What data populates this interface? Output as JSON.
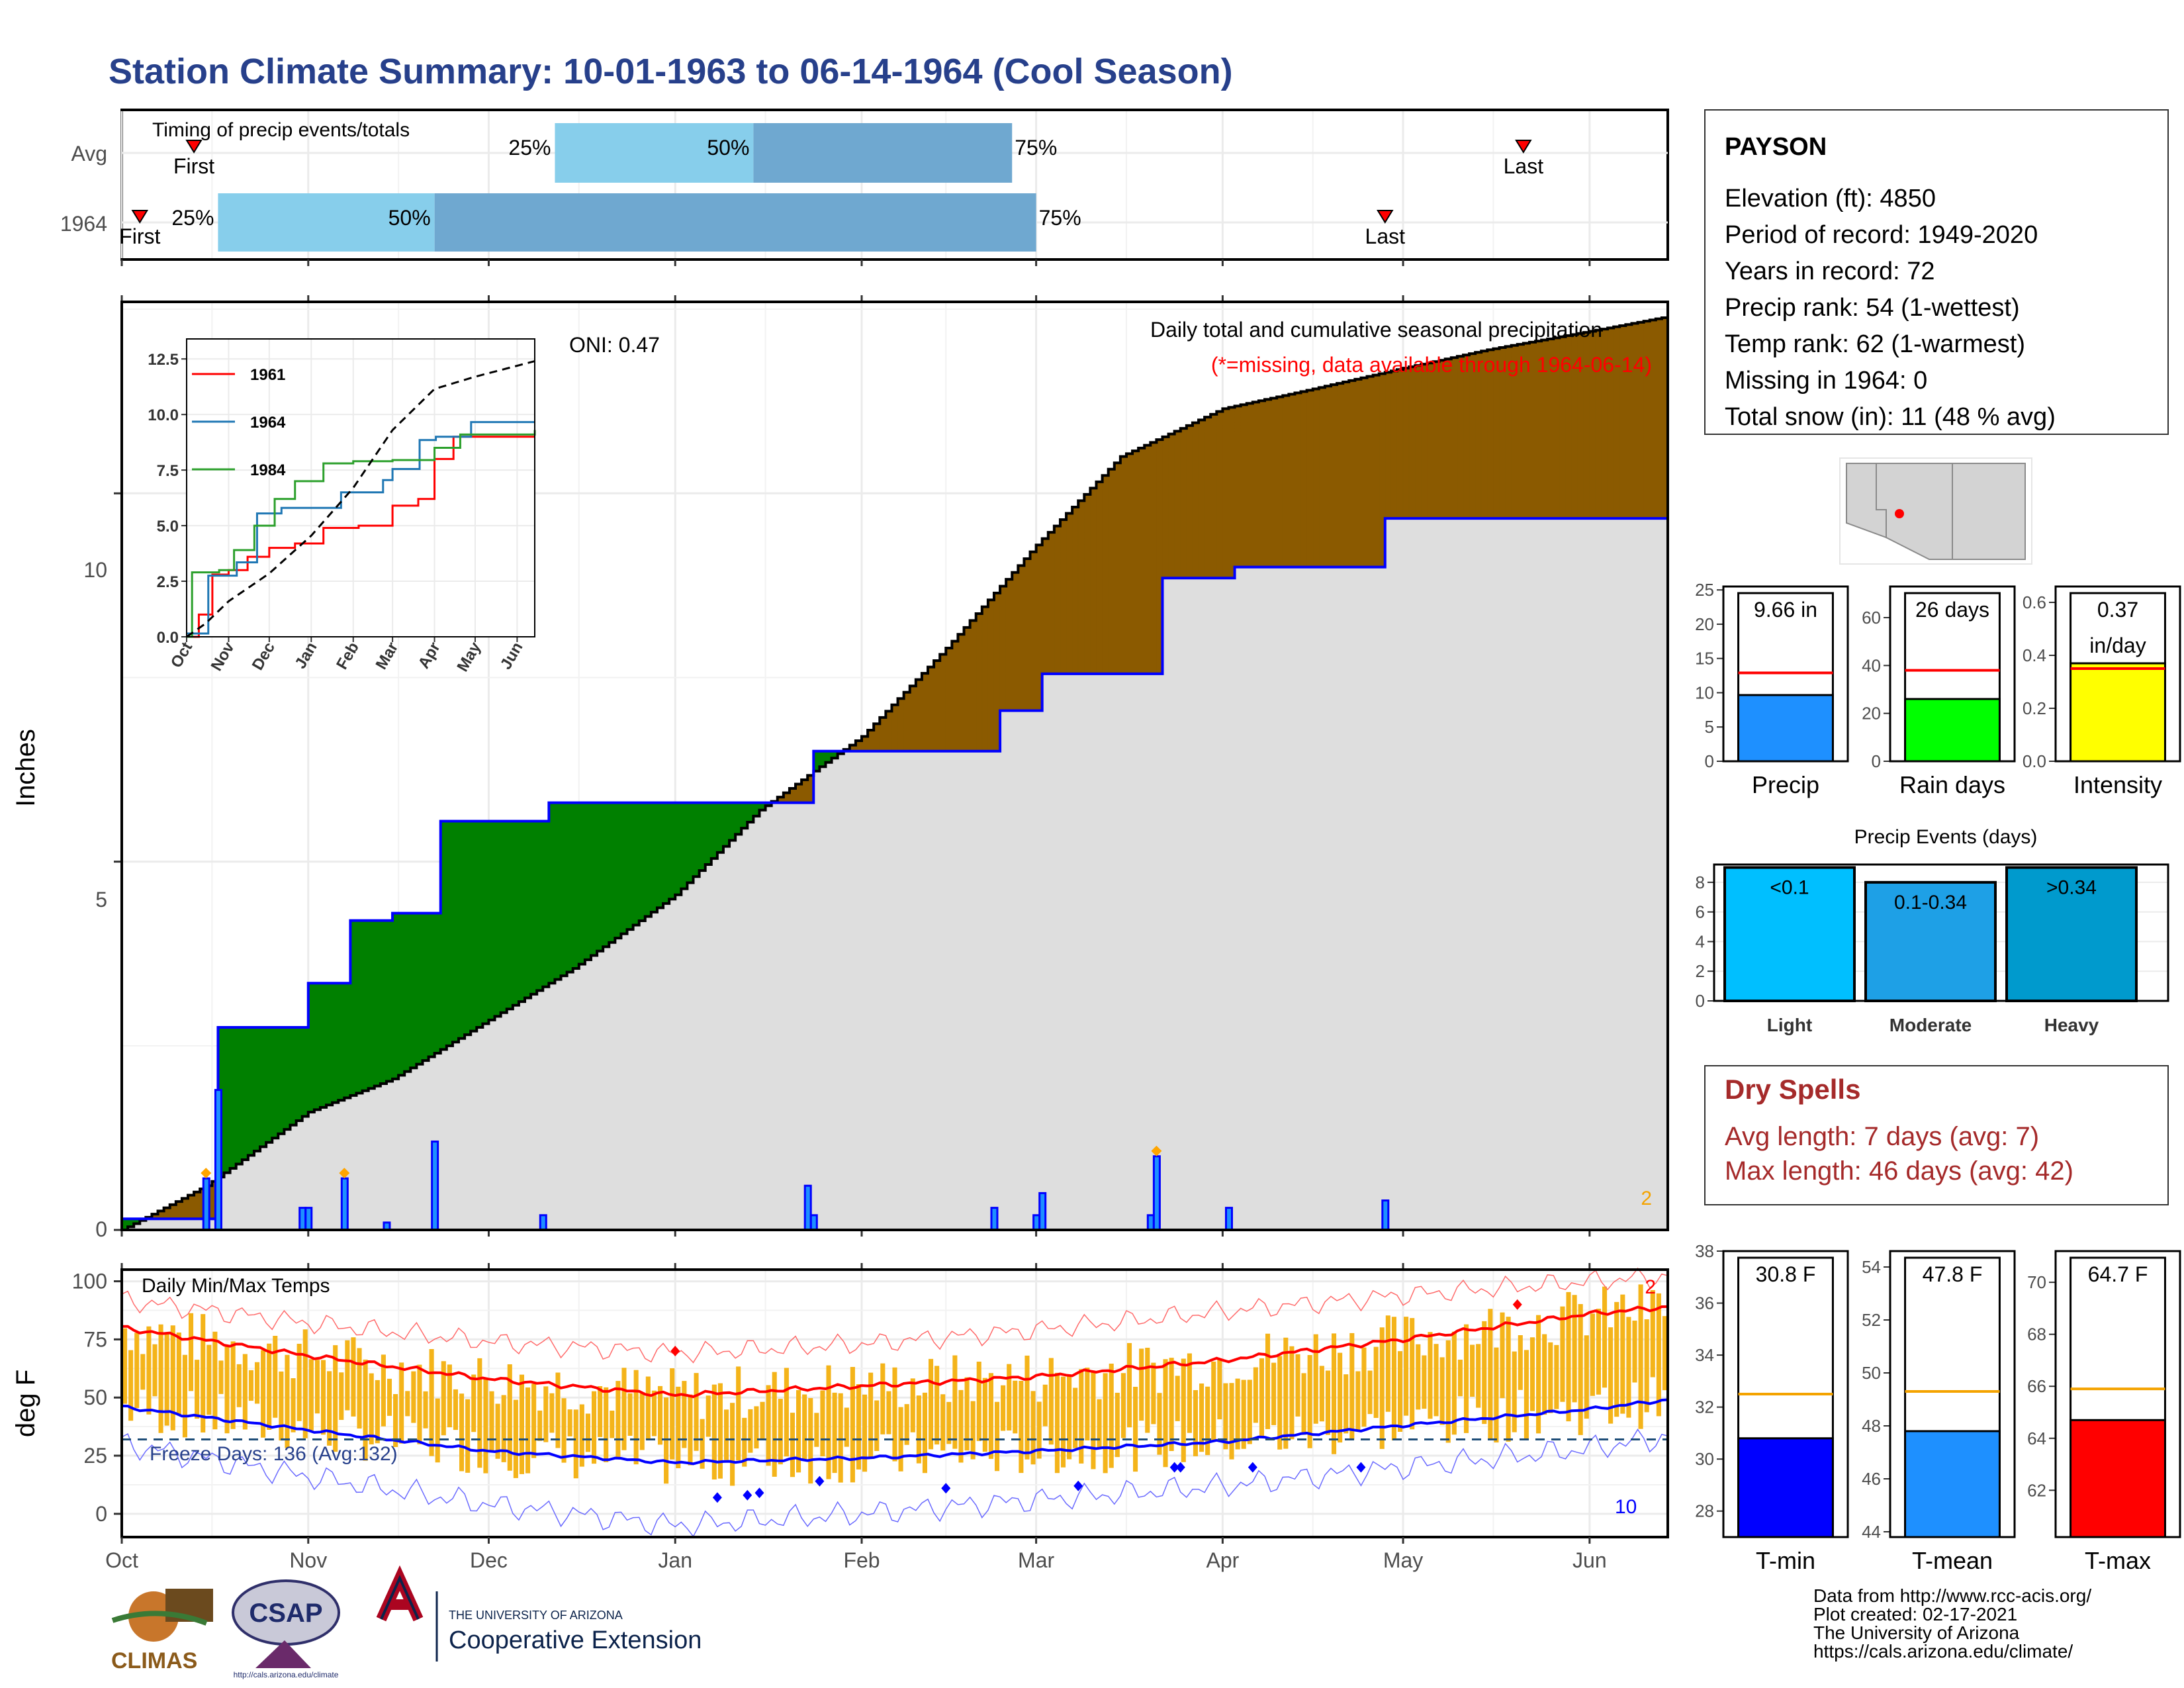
{
  "title": "Station Climate Summary: 10-01-1963 to 06-14-1964 (Cool Season)",
  "colors": {
    "title": "#27408b",
    "q1": "#87ceeb",
    "q2": "#6fa8d0",
    "fill_above_avg": "#008000",
    "fill_below_avg": "#8b5a00",
    "area": "#dedede",
    "blue": "#0000ff",
    "red": "#ff0000",
    "orange": "#f4b41a",
    "dry": "#a52a2a"
  },
  "month_labels": [
    "Oct",
    "Nov",
    "Dec",
    "Jan",
    "Feb",
    "Mar",
    "Apr",
    "May",
    "Jun"
  ],
  "timing": {
    "title": "Timing of precip events/totals",
    "rows": [
      {
        "label": "Avg",
        "first": "First",
        "last": "Last",
        "p25": "25%",
        "p50": "50%",
        "p75": "75%"
      },
      {
        "label": "1964",
        "first": "First",
        "last": "Last",
        "p25": "25%",
        "p50": "50%",
        "p75": "75%"
      }
    ]
  },
  "precip_panel": {
    "ylabel": "Inches",
    "yticks": [
      "0",
      "5",
      "10"
    ],
    "oni": "ONI: 0.47",
    "caption1": "Daily total and cumulative seasonal precipitation",
    "caption2": "(*=missing, data available through 1964-06-14)",
    "corner_count": "2"
  },
  "inset": {
    "yticks": [
      "0.0",
      "2.5",
      "5.0",
      "7.5",
      "10.0",
      "12.5"
    ],
    "xticks": [
      "Oct",
      "Nov",
      "Dec",
      "Jan",
      "Feb",
      "Mar",
      "Apr",
      "May",
      "Jun"
    ],
    "legend": [
      "1961",
      "1964",
      "1984"
    ]
  },
  "temp_panel": {
    "title": "Daily Min/Max Temps",
    "ylabel": "deg F",
    "yticks": [
      "0",
      "25",
      "50",
      "75",
      "100"
    ],
    "freeze": "Freeze Days: 136 (Avg:132)",
    "count_high": "2",
    "count_low": "10"
  },
  "station": {
    "name": "PAYSON",
    "lines": [
      "Elevation (ft): 4850",
      "Period of record: 1949-2020",
      "Years in record: 72",
      "Precip rank: 54 (1-wettest)",
      "Temp rank: 62 (1-warmest)",
      "Missing in 1964: 0",
      "Total snow (in): 11 (48 % avg)"
    ]
  },
  "mini_bars": [
    {
      "label": "Precip",
      "value_text": "9.66 in",
      "value": 9.66,
      "avg": 12.9,
      "max": 25,
      "ticks": [
        "0",
        "5",
        "10",
        "15",
        "20",
        "25"
      ],
      "color": "#1e90ff"
    },
    {
      "label": "Rain days",
      "value_text": "26 days",
      "value": 26,
      "avg": 38,
      "max": 70,
      "ticks": [
        "0",
        "20",
        "40",
        "60"
      ],
      "color": "#00ff00"
    },
    {
      "label": "Intensity",
      "value_text": "0.37 in/day",
      "value": 0.37,
      "avg": 0.35,
      "max": 0.66,
      "ticks": [
        "0.0",
        "0.2",
        "0.4",
        "0.6"
      ],
      "color": "#ffff00"
    }
  ],
  "precip_events": {
    "title": "Precip Events (days)",
    "ticks": [
      "0",
      "2",
      "4",
      "6",
      "8"
    ],
    "bars": [
      {
        "label": "Light",
        "bin": "<0.1",
        "value": 9,
        "color": "#00bfff"
      },
      {
        "label": "Moderate",
        "bin": "0.1-0.34",
        "value": 8,
        "color": "#1ea0e6"
      },
      {
        "label": "Heavy",
        "bin": ">0.34",
        "value": 9,
        "color": "#009acd"
      }
    ]
  },
  "dry_spells": {
    "title": "Dry Spells",
    "avg_length": "Avg length: 7 days (avg: 7)",
    "max_length": "Max length: 46 days (avg: 42)"
  },
  "temp_bars": [
    {
      "label": "T-min",
      "value_text": "30.8 F",
      "value": 30.8,
      "avg": 32.5,
      "min": 27,
      "max": 38,
      "ticks": [
        "28",
        "30",
        "32",
        "34",
        "36",
        "38"
      ],
      "color": "#0000ff"
    },
    {
      "label": "T-mean",
      "value_text": "47.8 F",
      "value": 47.8,
      "avg": 49.3,
      "min": 43.8,
      "max": 54.6,
      "ticks": [
        "44",
        "46",
        "48",
        "50",
        "52",
        "54"
      ],
      "color": "#1e90ff"
    },
    {
      "label": "T-max",
      "value_text": "64.7 F",
      "value": 64.7,
      "avg": 65.9,
      "min": 60.2,
      "max": 71.2,
      "ticks": [
        "62",
        "64",
        "66",
        "68",
        "70"
      ],
      "color": "#ff0000"
    }
  ],
  "footer": {
    "lines": [
      "Data from http://www.rcc-acis.org/",
      "Plot created: 02-17-2021",
      "The University of Arizona",
      "https://cals.arizona.edu/climate/"
    ],
    "logo_climas": "CLIMAS",
    "logo_csap": "CSAP",
    "logo_csap_url": "http://cals.arizona.edu/climate",
    "ua_small": "THE UNIVERSITY OF ARIZONA",
    "ua_big": "Cooperative Extension"
  },
  "chart_data": {
    "type": "area",
    "title": "Daily total and cumulative seasonal precipitation",
    "ylabel": "Inches",
    "ylim": [
      0,
      12.6
    ],
    "season": [
      "1963-10-01",
      "1964-06-14"
    ],
    "series": [
      {
        "name": "1964",
        "x": [
          "1963-10-01",
          "1963-10-16",
          "1963-10-17",
          "1963-10-31",
          "1963-11-01",
          "1963-11-07",
          "1963-11-08",
          "1963-11-14",
          "1963-11-15",
          "1963-11-22",
          "1963-11-23",
          "1963-12-10",
          "1963-12-11",
          "1964-01-23",
          "1964-01-24",
          "1964-02-23",
          "1964-02-24",
          "1964-03-01",
          "1964-03-02",
          "1964-03-21",
          "1964-03-22",
          "1964-04-02",
          "1964-04-03",
          "1964-04-27",
          "1964-04-28",
          "1964-06-14"
        ],
        "y": [
          0.15,
          0.15,
          2.75,
          2.75,
          3.35,
          3.35,
          4.2,
          4.2,
          4.3,
          4.3,
          5.55,
          5.55,
          5.8,
          5.8,
          6.5,
          6.5,
          7.05,
          7.05,
          7.55,
          7.55,
          8.85,
          8.85,
          9.0,
          9.0,
          9.66,
          9.66
        ]
      },
      {
        "name": "Average",
        "x": [
          "1963-10-01",
          "1963-10-15",
          "1963-11-01",
          "1963-11-15",
          "1963-12-01",
          "1963-12-15",
          "1964-01-01",
          "1964-01-15",
          "1964-02-01",
          "1964-02-15",
          "1964-03-01",
          "1964-03-15",
          "1964-04-01",
          "1964-04-15",
          "1964-05-01",
          "1964-05-15",
          "1964-06-01",
          "1964-06-14"
        ],
        "y": [
          0.0,
          0.6,
          1.6,
          2.05,
          2.85,
          3.55,
          4.55,
          5.7,
          6.7,
          7.9,
          9.3,
          10.5,
          11.15,
          11.4,
          11.7,
          11.95,
          12.2,
          12.4
        ]
      },
      {
        "name": "Daily precip (1964)",
        "x": [
          "1963-10-15",
          "1963-10-17",
          "1963-10-31",
          "1963-11-01",
          "1963-11-07",
          "1963-11-14",
          "1963-11-22",
          "1963-12-10",
          "1964-01-23",
          "1964-01-24",
          "1964-02-23",
          "1964-03-01",
          "1964-03-02",
          "1964-03-20",
          "1964-03-21",
          "1964-04-02",
          "1964-04-28"
        ],
        "y": [
          0.7,
          1.9,
          0.3,
          0.3,
          0.7,
          0.1,
          1.2,
          0.2,
          0.6,
          0.2,
          0.3,
          0.2,
          0.5,
          0.2,
          1.0,
          0.3,
          0.4
        ]
      }
    ],
    "timing": {
      "avg": {
        "first": "1963-10-13",
        "p25": "1963-12-12",
        "p50": "1964-01-14",
        "p75": "1964-02-26",
        "last": "1964-05-21"
      },
      "1964": {
        "first": "1963-10-04",
        "p25": "1963-10-17",
        "p50": "1963-11-22",
        "p75": "1964-03-01",
        "last": "1964-04-28"
      }
    },
    "temps": {
      "ylabel": "deg F",
      "ylim": [
        -10,
        105
      ],
      "freeze_line": 32,
      "normal_max": {
        "x": [
          "1963-10-01",
          "1963-11-01",
          "1963-12-01",
          "1964-01-01",
          "1964-02-01",
          "1964-03-01",
          "1964-04-01",
          "1964-05-01",
          "1964-06-01",
          "1964-06-14"
        ],
        "y": [
          80,
          68,
          58,
          51,
          55,
          59,
          66,
          75,
          86,
          89
        ]
      },
      "normal_min": {
        "x": [
          "1963-10-01",
          "1963-11-01",
          "1963-12-01",
          "1964-01-01",
          "1964-02-01",
          "1964-03-01",
          "1964-04-01",
          "1964-05-01",
          "1964-06-01",
          "1964-06-14"
        ],
        "y": [
          46,
          36,
          27,
          22,
          24,
          27,
          31,
          38,
          45,
          49
        ]
      },
      "record_max": {
        "x": [
          "1963-10-01",
          "1963-11-01",
          "1963-12-01",
          "1964-01-01",
          "1964-02-01",
          "1964-03-01",
          "1964-04-01",
          "1964-05-01",
          "1964-06-01",
          "1964-06-14"
        ],
        "y": [
          92,
          82,
          74,
          69,
          73,
          79,
          87,
          94,
          100,
          102
        ]
      },
      "record_min": {
        "x": [
          "1963-10-01",
          "1963-11-01",
          "1963-12-01",
          "1964-01-01",
          "1964-02-01",
          "1964-03-01",
          "1964-04-01",
          "1964-05-01",
          "1964-06-01",
          "1964-06-14"
        ],
        "y": [
          30,
          16,
          4,
          -5,
          0,
          6,
          12,
          20,
          28,
          33
        ]
      }
    },
    "inset": {
      "type": "line",
      "ylim": [
        0,
        13
      ],
      "series": [
        {
          "name": "1961",
          "x": [
            "1963-10-01",
            "1963-10-10",
            "1963-10-20",
            "1963-11-01",
            "1963-11-15",
            "1963-12-01",
            "1963-12-20",
            "1964-01-10",
            "1964-02-05",
            "1964-03-01",
            "1964-03-20",
            "1964-04-01",
            "1964-04-15",
            "1964-06-14"
          ],
          "y": [
            0,
            1.0,
            2.8,
            3.0,
            3.6,
            4.0,
            4.2,
            4.9,
            5.0,
            5.9,
            6.2,
            8.0,
            9.0,
            9.0
          ]
        },
        {
          "name": "1964",
          "x": [
            "1963-10-01",
            "1963-10-16",
            "1963-10-17",
            "1963-11-07",
            "1963-11-22",
            "1963-12-10",
            "1964-01-23",
            "1964-02-23",
            "1964-03-01",
            "1964-03-21",
            "1964-04-02",
            "1964-04-28",
            "1964-06-14"
          ],
          "y": [
            0.15,
            0.15,
            2.75,
            3.35,
            5.55,
            5.8,
            6.5,
            7.05,
            7.55,
            8.85,
            9.0,
            9.66,
            9.66
          ]
        },
        {
          "name": "1984",
          "x": [
            "1963-10-01",
            "1963-10-05",
            "1963-10-25",
            "1963-11-05",
            "1963-11-20",
            "1963-12-05",
            "1963-12-20",
            "1964-01-10",
            "1964-02-01",
            "1964-03-01",
            "1964-04-01",
            "1964-04-20",
            "1964-06-14"
          ],
          "y": [
            0,
            2.9,
            3.0,
            3.9,
            5.0,
            6.2,
            7.0,
            7.8,
            7.9,
            7.95,
            8.5,
            9.1,
            9.3
          ]
        },
        {
          "name": "Average",
          "x": [
            "1963-10-01",
            "1963-10-15",
            "1963-11-01",
            "1963-12-01",
            "1964-01-01",
            "1964-02-01",
            "1964-03-01",
            "1964-04-01",
            "1964-05-01",
            "1964-06-14"
          ],
          "y": [
            0,
            0.6,
            1.6,
            2.85,
            4.55,
            6.7,
            9.3,
            11.15,
            11.7,
            12.4
          ]
        }
      ]
    }
  }
}
